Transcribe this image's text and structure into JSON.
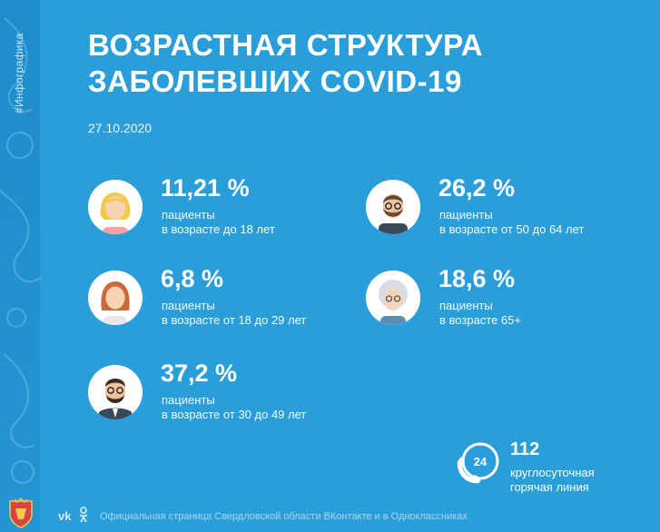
{
  "hashtag": "#Инфографика",
  "title": {
    "line1": "ВОЗРАСТНАЯ СТРУКТУРА",
    "line2": "ЗАБОЛЕВШИХ COVID-19"
  },
  "date": "27.10.2020",
  "stats": [
    {
      "percent": "11,21 %",
      "line1": "пациенты",
      "line2": "в возрасте до 18 лет",
      "icon": "girl-avatar-icon"
    },
    {
      "percent": "26,2 %",
      "line1": "пациенты",
      "line2": "в возрасте от 50 до 64 лет",
      "icon": "bearded-man-avatar-icon"
    },
    {
      "percent": "6,8 %",
      "line1": "пациенты",
      "line2": "в возрасте от 18 до 29 лет",
      "icon": "woman-avatar-icon"
    },
    {
      "percent": "18,6 %",
      "line1": "пациенты",
      "line2": "в возрасте 65+",
      "icon": "elderly-woman-avatar-icon"
    },
    {
      "percent": "37,2 %",
      "line1": "пациенты",
      "line2": "в возрасте от 30 до 49 лет",
      "icon": "man-in-suit-avatar-icon"
    }
  ],
  "hotline": {
    "number": "112",
    "badge": "24",
    "line1": "круглосуточная",
    "line2": "горячая линия",
    "icon": "phone-24-icon"
  },
  "footer": {
    "vk": "vk",
    "text": "Официальная страница Свердловской области ВКонтакте и в Одноклассниках"
  },
  "colors": {
    "background": "#2a9ed8",
    "text": "#ffffff"
  }
}
